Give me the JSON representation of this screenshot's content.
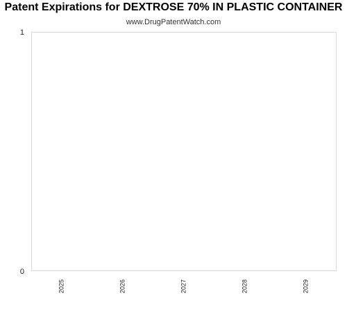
{
  "chart_data": {
    "type": "bar",
    "title": "Patent Expirations for DEXTROSE 70% IN PLASTIC CONTAINER",
    "subtitle": "www.DrugPatentWatch.com",
    "categories": [
      "2025",
      "2026",
      "2027",
      "2028",
      "2029"
    ],
    "values": [
      0,
      0,
      0,
      0,
      0
    ],
    "ylim": [
      0,
      1
    ],
    "yticks": [
      "0",
      "1"
    ],
    "xlabel": "",
    "ylabel": "",
    "grid": false,
    "colors": {
      "plot_border": "#d8d8d8",
      "bar": "#4a7ebb",
      "tick_text": "#222222"
    }
  }
}
